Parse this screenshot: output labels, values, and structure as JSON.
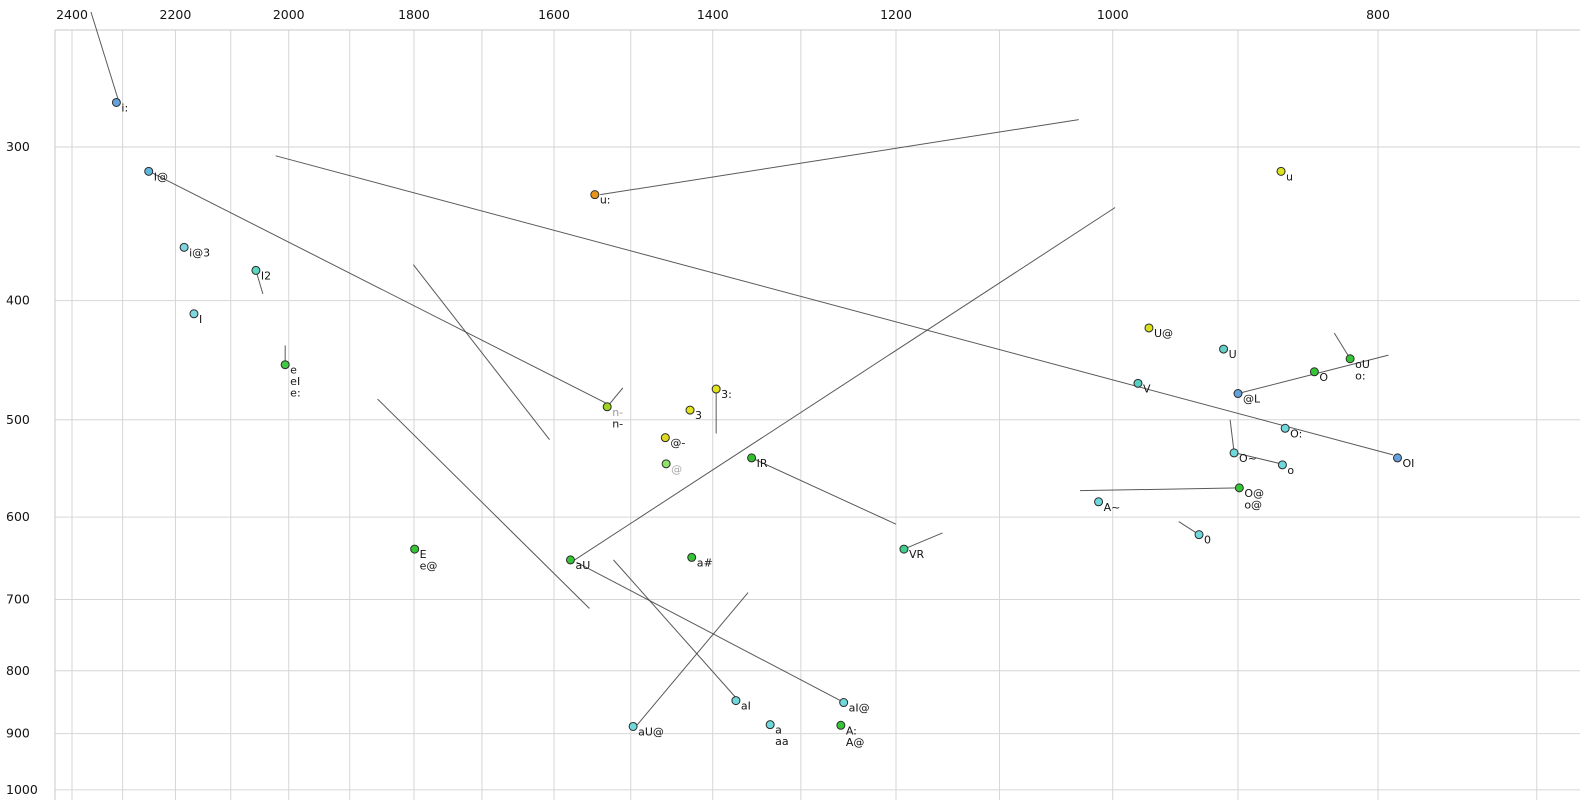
{
  "chart_data": {
    "type": "scatter",
    "description": "Vowel formant scatter plot, F2 (Hz) across top decreasing rightward, F1 (Hz) down left side, both log-scaled, with diphthong trajectory lines",
    "x_axis": {
      "tick_labels": [
        "2400",
        "2200",
        "2000",
        "1800",
        "1600",
        "1400",
        "1200",
        "1000",
        "800"
      ],
      "grid_min": 700,
      "grid_max": 2500,
      "grid_step": 100,
      "scale": "log",
      "direction": "decreasing-rightward"
    },
    "y_axis": {
      "tick_labels": [
        "300",
        "400",
        "500",
        "600",
        "700",
        "800",
        "900",
        "1000"
      ],
      "grid_min": 300,
      "grid_max": 1000,
      "grid_step": 100,
      "scale": "log",
      "direction": "increasing-downward"
    },
    "points": [
      {
        "label": "i:",
        "f2": 2312,
        "f1": 276,
        "fill": "#64a0dc"
      },
      {
        "label": "I@",
        "f2": 2250,
        "f1": 314,
        "fill": "#5fb7de"
      },
      {
        "label": "i@3",
        "f2": 2184,
        "f1": 362,
        "fill": "#7fd4e0"
      },
      {
        "label": "I2",
        "f2": 2056,
        "f1": 378,
        "fill": "#5cd6c0"
      },
      {
        "label": "I",
        "f2": 2166,
        "f1": 410,
        "fill": "#7fd8e0"
      },
      {
        "label": "e",
        "f2": 2006,
        "f1": 451,
        "fill": "#44c944",
        "sub": [
          "eI",
          "e:"
        ]
      },
      {
        "label": "E",
        "f2": 1799,
        "f1": 637,
        "fill": "#35c435",
        "sub": [
          "e@"
        ]
      },
      {
        "label": "aU",
        "f2": 1578,
        "f1": 650,
        "fill": "#35c435"
      },
      {
        "label": "n-",
        "f2": 1530,
        "f1": 488,
        "fill": "#9fd420",
        "label_color": "#9a9a9a",
        "sub": [
          "n-"
        ]
      },
      {
        "label": "3",
        "f2": 1427,
        "f1": 491,
        "fill": "#e3e31c"
      },
      {
        "label": "3:",
        "f2": 1396,
        "f1": 472,
        "fill": "#e3e31c"
      },
      {
        "label": "@-",
        "f2": 1457,
        "f1": 517,
        "fill": "#e0d81c"
      },
      {
        "label": "@",
        "f2": 1456,
        "f1": 543,
        "fill": "#8fe36b",
        "label_color": "#a8a8a8"
      },
      {
        "label": "IR",
        "f2": 1355,
        "f1": 537,
        "fill": "#2fbf2f"
      },
      {
        "label": "a#",
        "f2": 1425,
        "f1": 647,
        "fill": "#35c435"
      },
      {
        "label": "VR",
        "f2": 1192,
        "f1": 637,
        "fill": "#3ecf8e"
      },
      {
        "label": "aI",
        "f2": 1373,
        "f1": 846,
        "fill": "#6fd8dc"
      },
      {
        "label": "aI@",
        "f2": 1254,
        "f1": 849,
        "fill": "#6fd8dc"
      },
      {
        "label": "aU@",
        "f2": 1497,
        "f1": 888,
        "fill": "#6fd8dc"
      },
      {
        "label": "a",
        "f2": 1334,
        "f1": 885,
        "fill": "#6fd8dc",
        "sub": [
          "aa"
        ]
      },
      {
        "label": "A:",
        "f2": 1257,
        "f1": 886,
        "fill": "#35c435",
        "sub": [
          "A@"
        ]
      },
      {
        "label": "u:",
        "f2": 1546,
        "f1": 328,
        "fill": "#e8941a"
      },
      {
        "label": "u",
        "f2": 868,
        "f1": 314,
        "fill": "#dde31c"
      },
      {
        "label": "U@",
        "f2": 970,
        "f1": 421,
        "fill": "#d8e01c"
      },
      {
        "label": "U",
        "f2": 911,
        "f1": 438,
        "fill": "#63d0c8"
      },
      {
        "label": "V",
        "f2": 979,
        "f1": 467,
        "fill": "#55cfc0"
      },
      {
        "label": "oU",
        "f2": 819,
        "f1": 446,
        "fill": "#35c435",
        "sub": [
          "o:"
        ]
      },
      {
        "label": "O",
        "f2": 844,
        "f1": 457,
        "fill": "#35c435"
      },
      {
        "label": "@L",
        "f2": 900,
        "f1": 476,
        "fill": "#64a0dc"
      },
      {
        "label": "O:",
        "f2": 865,
        "f1": 508,
        "fill": "#6fd8dc"
      },
      {
        "label": "O~",
        "f2": 903,
        "f1": 532,
        "fill": "#6fd8dc"
      },
      {
        "label": "o",
        "f2": 867,
        "f1": 544,
        "fill": "#6fd8dc"
      },
      {
        "label": "OI",
        "f2": 787,
        "f1": 537,
        "fill": "#64a0dc"
      },
      {
        "label": "O@",
        "f2": 899,
        "f1": 568,
        "fill": "#35c435",
        "sub": [
          "o@"
        ]
      },
      {
        "label": "A~",
        "f2": 1012,
        "f1": 583,
        "fill": "#6fd8dc"
      },
      {
        "label": "0",
        "f2": 930,
        "f1": 620,
        "fill": "#6fd8dc"
      }
    ],
    "trajectory_lines": [
      [
        2362,
        233,
        2308,
        275
      ],
      [
        2243,
        315,
        1525,
        487
      ],
      [
        2022,
        305,
        790,
        534
      ],
      [
        1539,
        328,
        1029,
        285
      ],
      [
        1801,
        374,
        1606,
        519
      ],
      [
        1856,
        481,
        1553,
        712
      ],
      [
        1574,
        651,
        998,
        336
      ],
      [
        1493,
        887,
        1359,
        691
      ],
      [
        1251,
        851,
        1570,
        653
      ],
      [
        1370,
        846,
        1522,
        650
      ],
      [
        1355,
        537,
        1200,
        608
      ],
      [
        1192,
        637,
        1154,
        618
      ],
      [
        830,
        425,
        819,
        446
      ],
      [
        906,
        500,
        903,
        531
      ],
      [
        902,
        532,
        868,
        543
      ],
      [
        1028,
        571,
        899,
        568
      ],
      [
        946,
        605,
        930,
        620
      ],
      [
        900,
        476,
        793,
        443
      ],
      [
        2056,
        378,
        2044,
        395
      ],
      [
        2006,
        435,
        2006,
        451
      ],
      [
        1396,
        472,
        1396,
        513
      ],
      [
        1530,
        488,
        1510,
        471
      ]
    ]
  },
  "colors": {
    "background": "#ffffff",
    "grid": "#d6d6d6",
    "frame": "#c9c9c9",
    "trajectory": "#3c3c3c",
    "text": "#141414",
    "point_stroke": "#2b2b2b"
  }
}
